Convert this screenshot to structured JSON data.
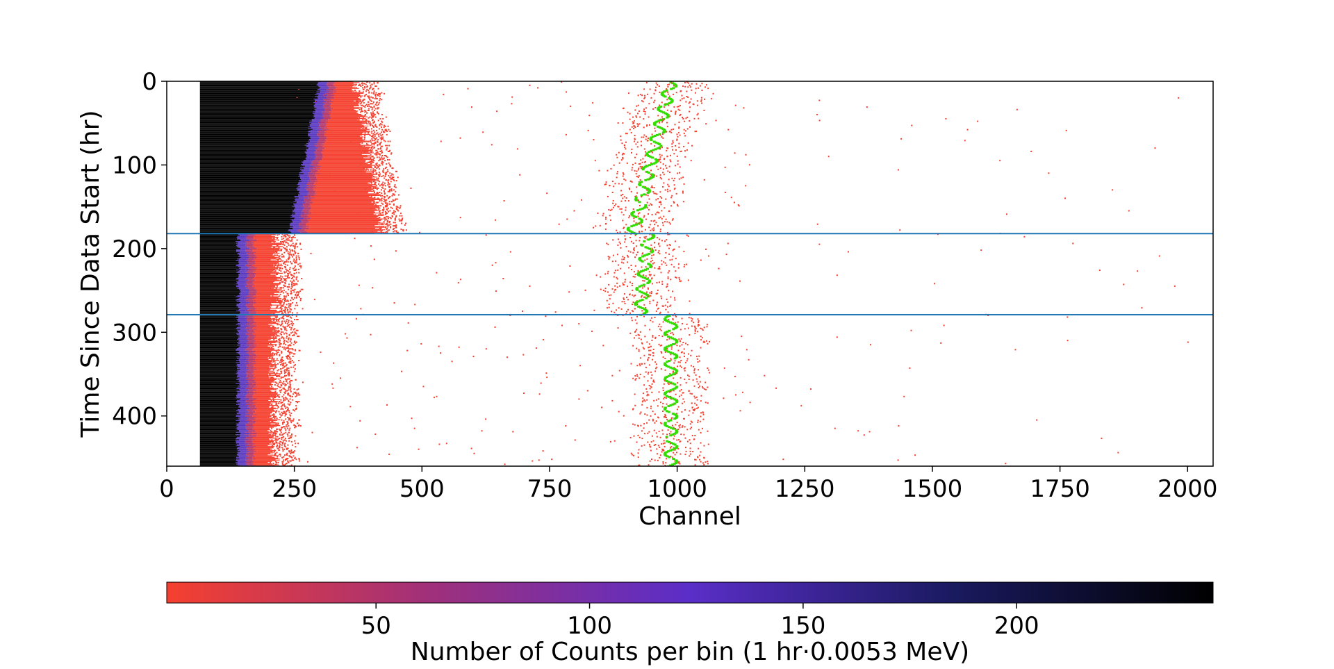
{
  "chart_data": {
    "type": "heatmap",
    "xlabel": "Channel",
    "ylabel": "Time Since Data Start (hr)",
    "xlim": [
      0,
      2050
    ],
    "ylim": [
      460,
      0
    ],
    "x_ticks": [
      0,
      250,
      500,
      750,
      1000,
      1250,
      1500,
      1750,
      2000
    ],
    "y_ticks": [
      0,
      100,
      200,
      300,
      400
    ],
    "grid": false,
    "horizontal_lines": [
      {
        "y": 182,
        "color": "#1f77b4"
      },
      {
        "y": 279,
        "color": "#1f77b4"
      }
    ],
    "colorbar": {
      "label": "Number of Counts per bin (1 hr·0.0053 MeV)",
      "range": [
        1,
        246
      ],
      "ticks": [
        50,
        100,
        150,
        200
      ],
      "orientation": "horizontal",
      "colors": [
        "#f5402f",
        "#a0307a",
        "#5a2ec8",
        "#1a1a60",
        "#000000"
      ]
    },
    "segments": [
      {
        "t_start": 0,
        "t_end": 182,
        "low_channel": 65,
        "dense_edge_start": 300,
        "dense_edge_end": 240,
        "tail_end_start": 370,
        "tail_end_end": 420,
        "peak_channel_start": 985,
        "peak_channel_end": 910
      },
      {
        "t_start": 182,
        "t_end": 279,
        "low_channel": 65,
        "dense_edge_start": 140,
        "dense_edge_end": 140,
        "tail_end_start": 215,
        "tail_end_end": 215,
        "peak_channel_start": 940,
        "peak_channel_end": 925
      },
      {
        "t_start": 279,
        "t_end": 460,
        "low_channel": 65,
        "dense_edge_start": 140,
        "dense_edge_end": 140,
        "tail_end_start": 210,
        "tail_end_end": 210,
        "peak_channel_start": 985,
        "peak_channel_end": 985
      }
    ],
    "peak_color": "#33dd00",
    "sparse_count_color": "#f5402f",
    "max_color": "#000000"
  }
}
